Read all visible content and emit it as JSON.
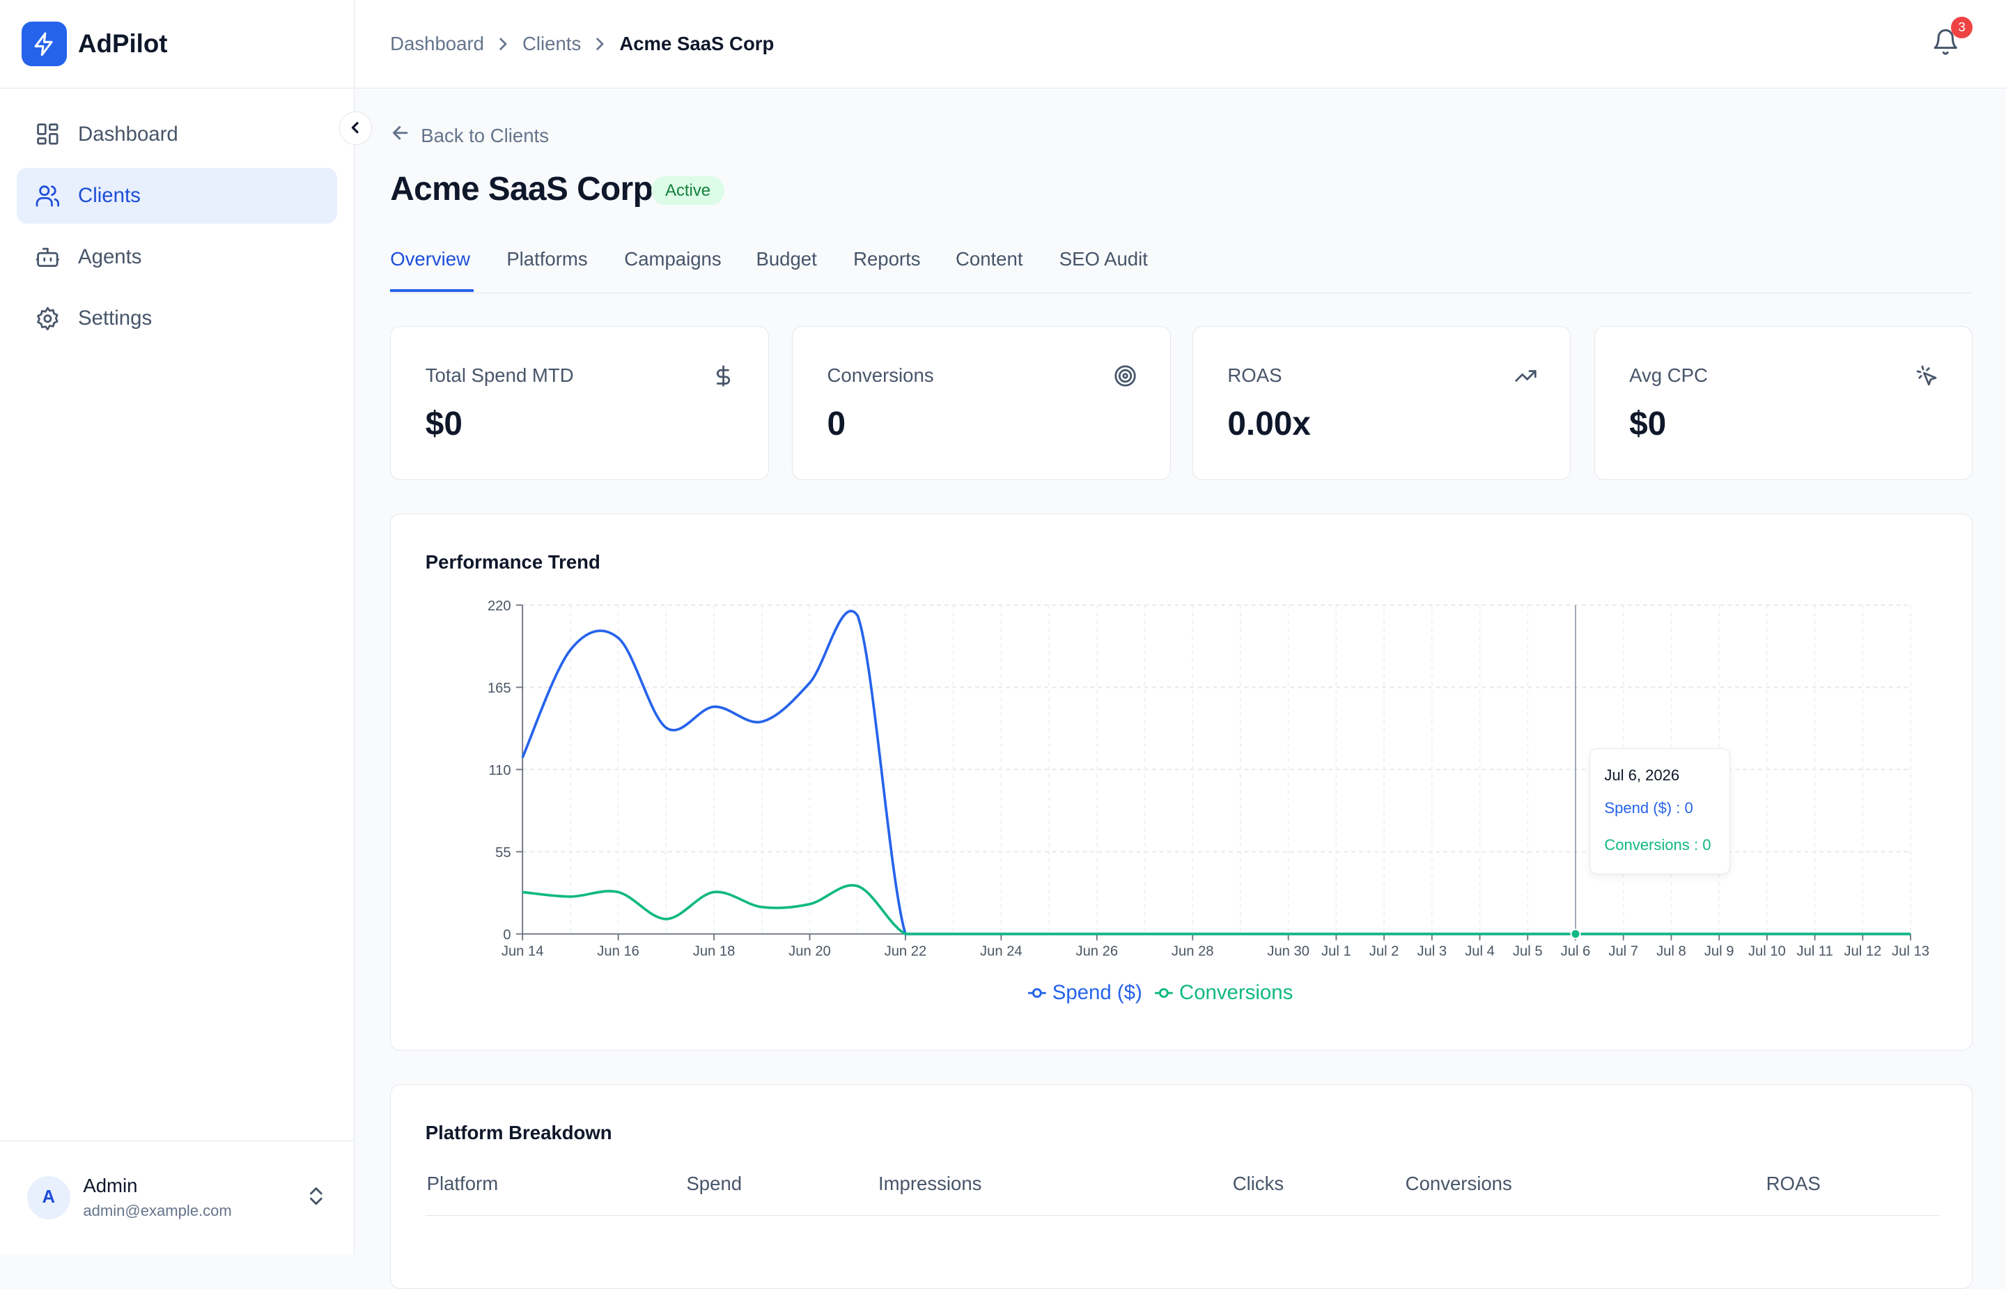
{
  "app": {
    "name": "AdPilot"
  },
  "sidebar": {
    "items": [
      {
        "label": "Dashboard",
        "icon": "dashboard-grid-icon"
      },
      {
        "label": "Clients",
        "icon": "users-icon",
        "active": true
      },
      {
        "label": "Agents",
        "icon": "bot-icon"
      },
      {
        "label": "Settings",
        "icon": "gear-icon"
      }
    ],
    "user": {
      "initial": "A",
      "name": "Admin",
      "email": "admin@example.com"
    }
  },
  "breadcrumb": [
    "Dashboard",
    "Clients",
    "Acme SaaS Corp"
  ],
  "notifications": {
    "count": "3"
  },
  "back_link": "Back to Clients",
  "client": {
    "name": "Acme SaaS Corp",
    "status": "Active"
  },
  "tabs": [
    "Overview",
    "Platforms",
    "Campaigns",
    "Budget",
    "Reports",
    "Content",
    "SEO Audit"
  ],
  "kpis": [
    {
      "label": "Total Spend MTD",
      "value": "$0",
      "icon": "dollar-icon"
    },
    {
      "label": "Conversions",
      "value": "0",
      "icon": "target-icon"
    },
    {
      "label": "ROAS",
      "value": "0.00x",
      "icon": "trending-up-icon"
    },
    {
      "label": "Avg CPC",
      "value": "$0",
      "icon": "cursor-click-icon"
    }
  ],
  "performance": {
    "title": "Performance Trend",
    "tooltip": {
      "date": "Jul 6, 2026",
      "spend": "Spend ($) : 0",
      "conversions": "Conversions : 0"
    }
  },
  "breakdown": {
    "title": "Platform Breakdown",
    "columns": [
      "Platform",
      "Spend",
      "Impressions",
      "Clicks",
      "Conversions",
      "ROAS"
    ]
  },
  "colors": {
    "accent": "#2563eb",
    "spend": "#2563eb",
    "conversions": "#10b981"
  },
  "chart_data": {
    "type": "line",
    "title": "Performance Trend",
    "x": [
      "Jun 14",
      "Jun 15",
      "Jun 16",
      "Jun 17",
      "Jun 18",
      "Jun 19",
      "Jun 20",
      "Jun 21",
      "Jun 22",
      "Jun 23",
      "Jun 24",
      "Jun 25",
      "Jun 26",
      "Jun 27",
      "Jun 28",
      "Jun 29",
      "Jun 30",
      "Jul 1",
      "Jul 2",
      "Jul 3",
      "Jul 4",
      "Jul 5",
      "Jul 6",
      "Jul 7",
      "Jul 8",
      "Jul 9",
      "Jul 10",
      "Jul 11",
      "Jul 12",
      "Jul 13"
    ],
    "tick_labels": [
      "Jun 14",
      "Jun 16",
      "Jun 18",
      "Jun 20",
      "Jun 22",
      "Jun 24",
      "Jun 26",
      "Jun 28",
      "Jun 30",
      "Jul 1",
      "Jul 2",
      "Jul 3",
      "Jul 4",
      "Jul 5",
      "Jul 6",
      "Jul 7",
      "Jul 8",
      "Jul 9",
      "Jul 10",
      "Jul 11",
      "Jul 12",
      "Jul 13"
    ],
    "y_ticks": [
      0,
      55,
      110,
      165,
      220
    ],
    "ylim": [
      0,
      220
    ],
    "series": [
      {
        "name": "Spend ($)",
        "color": "#2563eb",
        "values": [
          118,
          190,
          198,
          138,
          152,
          142,
          168,
          213,
          0,
          0,
          0,
          0,
          0,
          0,
          0,
          0,
          0,
          0,
          0,
          0,
          0,
          0,
          0,
          0,
          0,
          0,
          0,
          0,
          0,
          0
        ]
      },
      {
        "name": "Conversions",
        "color": "#10b981",
        "values": [
          28,
          25,
          28,
          10,
          28,
          18,
          20,
          32,
          0,
          0,
          0,
          0,
          0,
          0,
          0,
          0,
          0,
          0,
          0,
          0,
          0,
          0,
          0,
          0,
          0,
          0,
          0,
          0,
          0,
          0
        ]
      }
    ],
    "grid": true,
    "legend": "bottom-center",
    "hover_index": 22
  }
}
